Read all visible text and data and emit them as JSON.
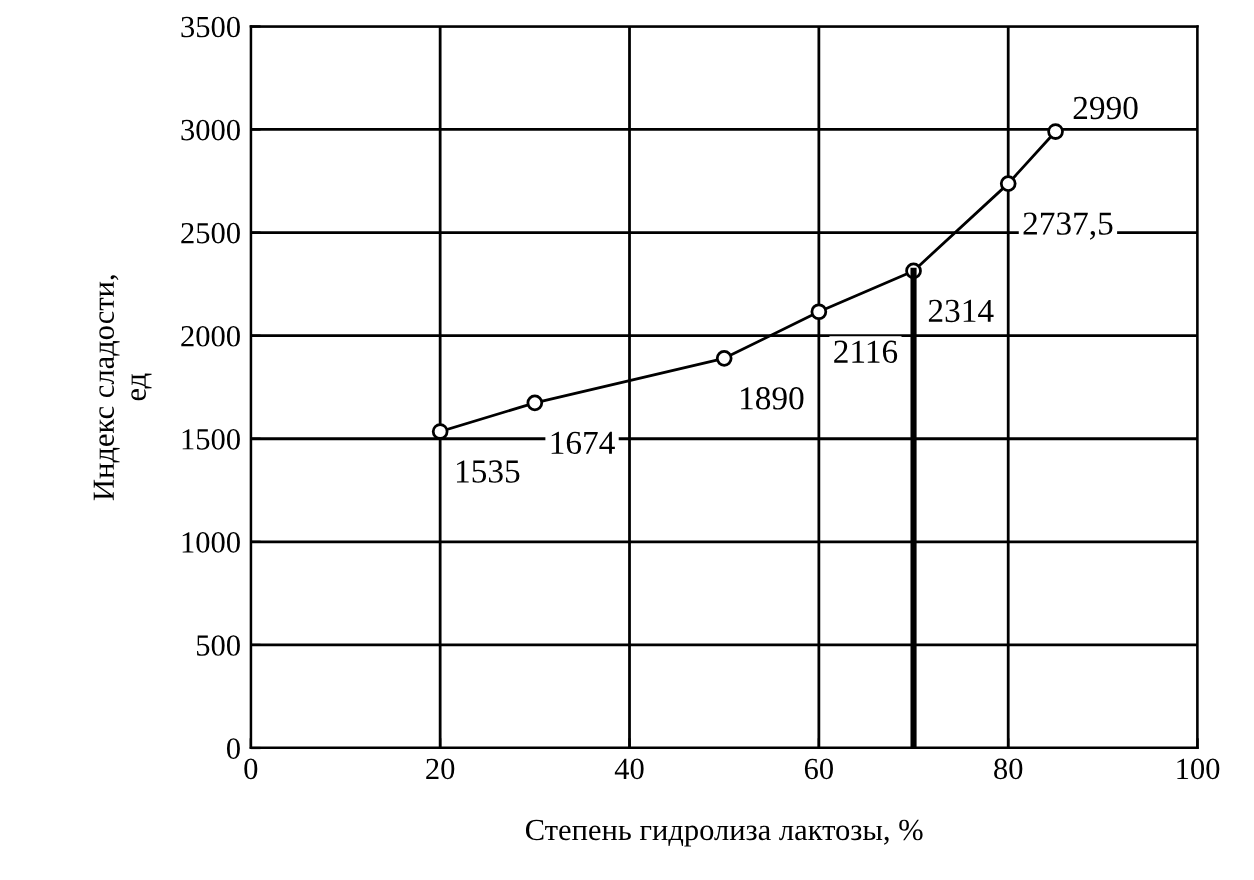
{
  "chart_data": {
    "type": "line",
    "xlabel": "Степень гидролиза лактозы, %",
    "ylabel": "Индекс сладости,\nед",
    "x": [
      20,
      30,
      50,
      60,
      70,
      80,
      85
    ],
    "series": [
      {
        "color": "#000000",
        "values": [
          1535,
          1674,
          1890,
          2116,
          2314,
          2737.5,
          2990
        ],
        "value_labels": [
          "1535",
          "1674",
          "1890",
          "2116",
          "2314",
          "2737,5",
          "2990"
        ],
        "marker": "circle"
      },
      {
        "type": "line",
        "color": "#000000",
        "x": [
          70,
          70
        ],
        "values": [
          0,
          2314
        ],
        "marker": "none"
      }
    ],
    "xlim": [
      0,
      100
    ],
    "xticks": [
      0,
      20,
      40,
      60,
      80,
      100
    ],
    "ylim": [
      0,
      3500
    ],
    "yticks": [
      0,
      500,
      1000,
      1500,
      2000,
      2500,
      3000,
      3500
    ],
    "grid": true,
    "legend": false
  }
}
